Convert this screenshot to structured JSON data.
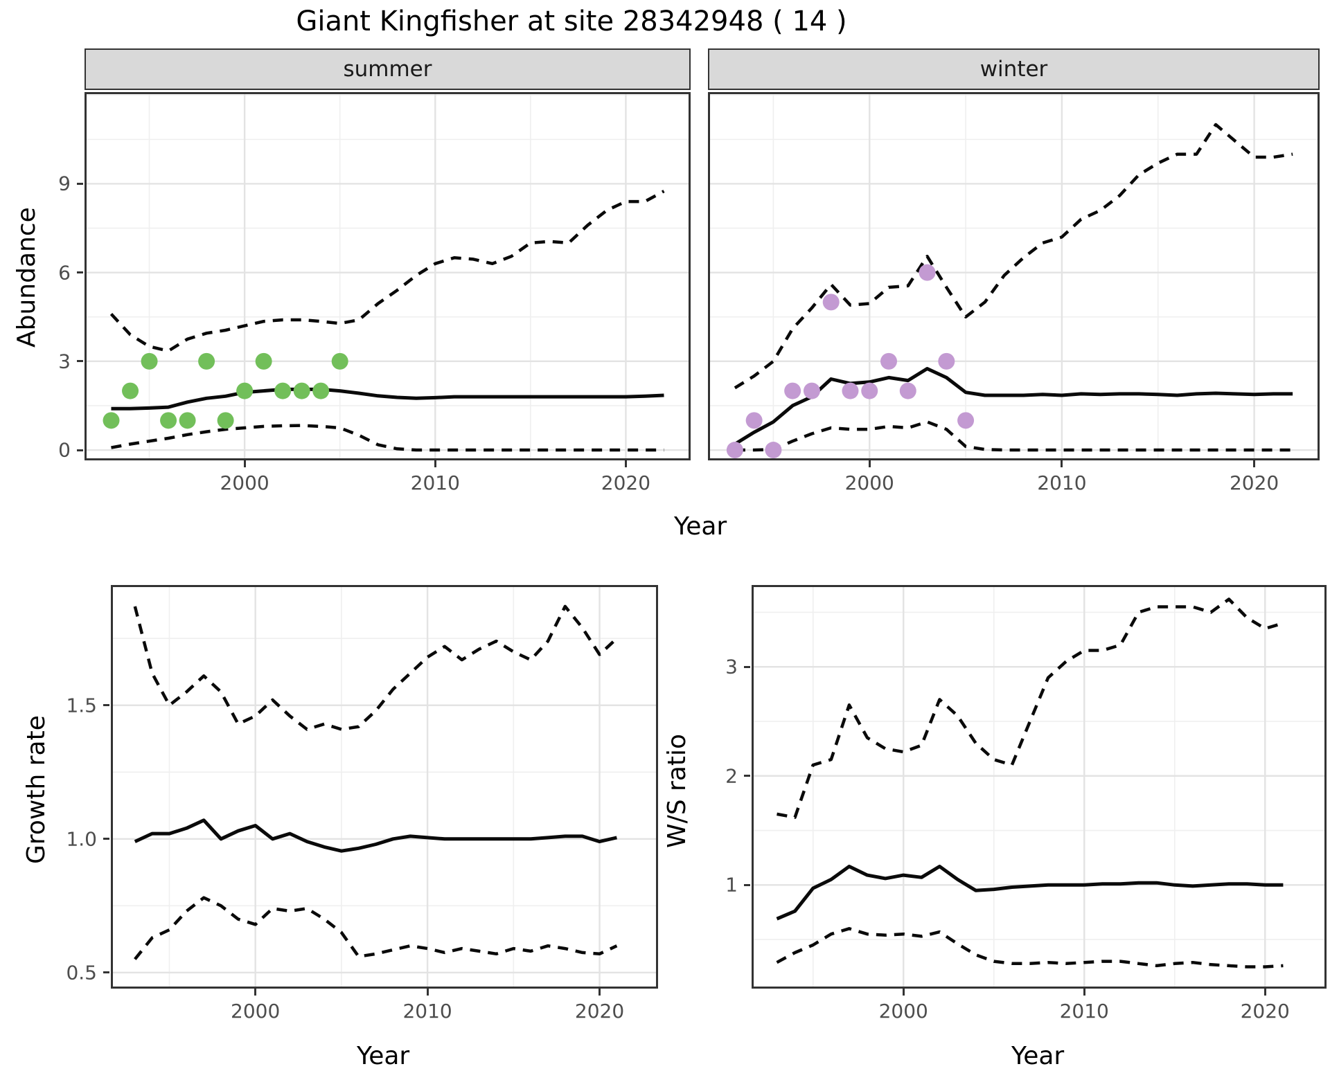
{
  "title": "Giant Kingfisher at site 28342948 ( 14 )",
  "colors": {
    "summer_point": "#72bf5a",
    "winter_point": "#c39ad2",
    "line": "#0a0a0a",
    "grid_major": "#e3e3e3",
    "grid_minor": "#efefef",
    "panel_border": "#333333",
    "strip_fill": "#d9d9d9",
    "tick_text": "#4d4d4d"
  },
  "chart_data": [
    {
      "type": "line",
      "panel": "summer-abundance",
      "facet_label": "summer",
      "ylabel": "Abundance",
      "xlabel": "Year",
      "xlim": [
        1991.6,
        2023.4
      ],
      "ylim": [
        -0.35,
        12.1
      ],
      "x_ticks": [
        2000,
        2010,
        2020
      ],
      "x_tick_labels": [
        "2000",
        "2010",
        "2020"
      ],
      "x_minor": [
        1995,
        2005,
        2015
      ],
      "y_ticks": [
        0,
        3,
        6,
        9
      ],
      "y_tick_labels": [
        "0",
        "3",
        "6",
        "9"
      ],
      "y_minor": [
        1.5,
        4.5,
        7.5,
        10.5,
        12
      ],
      "show_y_labels": true,
      "points": {
        "color": "#72bf5a",
        "x": [
          1993,
          1994,
          1995,
          1996,
          1997,
          1998,
          1999,
          2000,
          2001,
          2002,
          2003,
          2004,
          2005
        ],
        "y": [
          1,
          2,
          3,
          1,
          1,
          3,
          1,
          2,
          3,
          2,
          2,
          2,
          3
        ]
      },
      "series": [
        {
          "name": "ci_upper",
          "style": "dashed",
          "x_start": 1993,
          "values": [
            4.6,
            3.9,
            3.5,
            3.35,
            3.75,
            3.95,
            4.05,
            4.2,
            4.35,
            4.4,
            4.4,
            4.35,
            4.28,
            4.4,
            4.95,
            5.4,
            5.9,
            6.3,
            6.5,
            6.45,
            6.3,
            6.55,
            7.0,
            7.05,
            7.0,
            7.6,
            8.1,
            8.4,
            8.4,
            8.75
          ]
        },
        {
          "name": "ci_lower",
          "style": "dashed",
          "x_start": 1993,
          "values": [
            0.08,
            0.2,
            0.3,
            0.4,
            0.52,
            0.62,
            0.7,
            0.75,
            0.8,
            0.82,
            0.83,
            0.8,
            0.75,
            0.5,
            0.18,
            0.04,
            0.0,
            0.0,
            0.0,
            0.0,
            0.0,
            0.0,
            0.0,
            0.0,
            0.0,
            0.0,
            0.0,
            0.0,
            0.0,
            0.0
          ]
        },
        {
          "name": "median",
          "style": "solid",
          "x_start": 1993,
          "values": [
            1.4,
            1.4,
            1.42,
            1.45,
            1.62,
            1.75,
            1.82,
            1.95,
            2.0,
            2.05,
            2.05,
            2.05,
            2.0,
            1.92,
            1.83,
            1.78,
            1.75,
            1.77,
            1.8,
            1.8,
            1.8,
            1.8,
            1.8,
            1.8,
            1.8,
            1.8,
            1.8,
            1.8,
            1.82,
            1.85
          ]
        }
      ]
    },
    {
      "type": "line",
      "panel": "winter-abundance",
      "facet_label": "winter",
      "ylabel": "Abundance",
      "xlabel": "Year",
      "xlim": [
        1991.6,
        2023.4
      ],
      "ylim": [
        -0.35,
        12.1
      ],
      "x_ticks": [
        2000,
        2010,
        2020
      ],
      "x_tick_labels": [
        "2000",
        "2010",
        "2020"
      ],
      "x_minor": [
        1995,
        2005,
        2015
      ],
      "y_ticks": [
        0,
        3,
        6,
        9
      ],
      "y_tick_labels": [
        "0",
        "3",
        "6",
        "9"
      ],
      "y_minor": [
        1.5,
        4.5,
        7.5,
        10.5,
        12
      ],
      "show_y_labels": false,
      "points": {
        "color": "#c39ad2",
        "x": [
          1993,
          1994,
          1995,
          1996,
          1997,
          1998,
          1999,
          2000,
          2001,
          2002,
          2003,
          2004,
          2005
        ],
        "y": [
          0,
          1,
          0,
          2,
          2,
          5,
          2,
          2,
          3,
          2,
          6,
          3,
          1
        ]
      },
      "series": [
        {
          "name": "ci_upper",
          "style": "dashed",
          "x_start": 1993,
          "values": [
            2.1,
            2.5,
            3.0,
            4.1,
            4.8,
            5.6,
            4.9,
            4.95,
            5.5,
            5.55,
            6.55,
            5.5,
            4.5,
            5.0,
            5.9,
            6.5,
            7.0,
            7.2,
            7.8,
            8.1,
            8.6,
            9.3,
            9.7,
            10.0,
            10.0,
            11.0,
            10.45,
            9.9,
            9.9,
            10.0
          ]
        },
        {
          "name": "ci_lower",
          "style": "dashed",
          "x_start": 1993,
          "values": [
            0.0,
            0.0,
            0.02,
            0.3,
            0.55,
            0.75,
            0.7,
            0.7,
            0.8,
            0.75,
            0.95,
            0.7,
            0.12,
            0.02,
            0.0,
            0.0,
            0.0,
            0.0,
            0.0,
            0.0,
            0.0,
            0.0,
            0.0,
            0.0,
            0.0,
            0.0,
            0.0,
            0.0,
            0.0,
            0.0
          ]
        },
        {
          "name": "median",
          "style": "solid",
          "x_start": 1993,
          "values": [
            0.2,
            0.6,
            0.95,
            1.5,
            1.8,
            2.4,
            2.25,
            2.3,
            2.45,
            2.35,
            2.75,
            2.45,
            1.95,
            1.85,
            1.85,
            1.85,
            1.88,
            1.85,
            1.9,
            1.88,
            1.9,
            1.9,
            1.88,
            1.85,
            1.9,
            1.92,
            1.9,
            1.88,
            1.9,
            1.9
          ]
        }
      ]
    },
    {
      "type": "line",
      "panel": "growth-rate",
      "facet_label": "",
      "ylabel": "Growth rate",
      "xlabel": "Year",
      "xlim": [
        1991.6,
        2023.4
      ],
      "ylim": [
        0.44,
        1.95
      ],
      "x_ticks": [
        2000,
        2010,
        2020
      ],
      "x_tick_labels": [
        "2000",
        "2010",
        "2020"
      ],
      "x_minor": [
        1995,
        2005,
        2015
      ],
      "y_ticks": [
        0.5,
        1.0,
        1.5
      ],
      "y_tick_labels": [
        "0.5",
        "1.0",
        "1.5"
      ],
      "y_minor": [
        0.75,
        1.25,
        1.75
      ],
      "show_y_labels": true,
      "points": null,
      "series": [
        {
          "name": "ci_upper",
          "style": "dashed",
          "x_start": 1993,
          "values": [
            1.87,
            1.62,
            1.5,
            1.55,
            1.61,
            1.55,
            1.43,
            1.46,
            1.52,
            1.46,
            1.41,
            1.43,
            1.41,
            1.42,
            1.48,
            1.56,
            1.62,
            1.68,
            1.72,
            1.67,
            1.71,
            1.74,
            1.7,
            1.67,
            1.74,
            1.87,
            1.79,
            1.69,
            1.75
          ]
        },
        {
          "name": "ci_lower",
          "style": "dashed",
          "x_start": 1993,
          "values": [
            0.55,
            0.63,
            0.66,
            0.73,
            0.78,
            0.75,
            0.7,
            0.68,
            0.74,
            0.73,
            0.74,
            0.7,
            0.65,
            0.56,
            0.57,
            0.585,
            0.6,
            0.59,
            0.575,
            0.59,
            0.58,
            0.57,
            0.59,
            0.58,
            0.6,
            0.59,
            0.575,
            0.57,
            0.6
          ]
        },
        {
          "name": "median",
          "style": "solid",
          "x_start": 1993,
          "values": [
            0.99,
            1.02,
            1.02,
            1.04,
            1.07,
            1.0,
            1.03,
            1.05,
            1.0,
            1.02,
            0.99,
            0.97,
            0.955,
            0.965,
            0.98,
            1.0,
            1.01,
            1.005,
            1.0,
            1.0,
            1.0,
            1.0,
            1.0,
            1.0,
            1.005,
            1.01,
            1.01,
            0.99,
            1.005
          ]
        }
      ]
    },
    {
      "type": "line",
      "panel": "ws-ratio",
      "facet_label": "",
      "ylabel": "W/S ratio",
      "xlabel": "Year",
      "xlim": [
        1991.6,
        2023.4
      ],
      "ylim": [
        0.05,
        3.75
      ],
      "x_ticks": [
        2000,
        2010,
        2020
      ],
      "x_tick_labels": [
        "2000",
        "2010",
        "2020"
      ],
      "x_minor": [
        1995,
        2005,
        2015
      ],
      "y_ticks": [
        1,
        2,
        3
      ],
      "y_tick_labels": [
        "1",
        "2",
        "3"
      ],
      "y_minor": [
        0.5,
        1.5,
        2.5,
        3.5
      ],
      "show_y_labels": true,
      "points": null,
      "series": [
        {
          "name": "ci_upper",
          "style": "dashed",
          "x_start": 1993,
          "values": [
            1.65,
            1.62,
            2.1,
            2.15,
            2.65,
            2.35,
            2.25,
            2.22,
            2.28,
            2.7,
            2.55,
            2.3,
            2.15,
            2.1,
            2.5,
            2.9,
            3.05,
            3.15,
            3.15,
            3.2,
            3.5,
            3.55,
            3.55,
            3.55,
            3.5,
            3.62,
            3.45,
            3.35,
            3.4
          ]
        },
        {
          "name": "ci_lower",
          "style": "dashed",
          "x_start": 1993,
          "values": [
            0.29,
            0.38,
            0.45,
            0.55,
            0.6,
            0.55,
            0.54,
            0.55,
            0.53,
            0.57,
            0.46,
            0.36,
            0.3,
            0.28,
            0.28,
            0.29,
            0.28,
            0.29,
            0.3,
            0.3,
            0.28,
            0.26,
            0.28,
            0.29,
            0.27,
            0.26,
            0.25,
            0.25,
            0.26
          ]
        },
        {
          "name": "median",
          "style": "solid",
          "x_start": 1993,
          "values": [
            0.69,
            0.76,
            0.97,
            1.05,
            1.17,
            1.09,
            1.06,
            1.09,
            1.07,
            1.17,
            1.05,
            0.95,
            0.96,
            0.98,
            0.99,
            1.0,
            1.0,
            1.0,
            1.01,
            1.01,
            1.02,
            1.02,
            1.0,
            0.99,
            1.0,
            1.01,
            1.01,
            1.0,
            1.0
          ]
        }
      ]
    }
  ]
}
